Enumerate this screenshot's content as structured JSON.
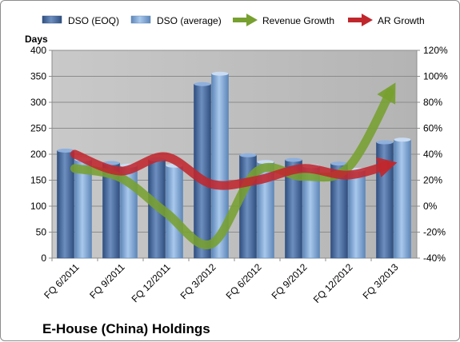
{
  "chart_data": {
    "type": "bar",
    "title": "E-House (China) Holdings",
    "ylabel": "Days",
    "ylim": [
      0,
      400
    ],
    "y2lim": [
      -40,
      120
    ],
    "yticks": [
      0,
      50,
      100,
      150,
      200,
      250,
      300,
      350,
      400
    ],
    "y2ticks": [
      "-40%",
      "-20%",
      "0%",
      "20%",
      "40%",
      "60%",
      "80%",
      "100%",
      "120%"
    ],
    "grid": true,
    "legend_position": "top",
    "categories": [
      "FQ 6/2011",
      "FQ 9/2011",
      "FQ 12/2011",
      "FQ 3/2012",
      "FQ 6/2012",
      "FQ 9/2012",
      "FQ 12/2012",
      "FQ 3/2013"
    ],
    "series": [
      {
        "name": "DSO (EOQ)",
        "type": "bar",
        "axis": "left",
        "color": "#4a6fa5",
        "values": [
          207,
          183,
          190,
          335,
          198,
          189,
          182,
          223
        ]
      },
      {
        "name": "DSO (average)",
        "type": "bar",
        "axis": "left",
        "color": "#8db4e2",
        "values": [
          190,
          178,
          178,
          355,
          185,
          177,
          170,
          228
        ]
      },
      {
        "name": "Revenue Growth",
        "type": "line",
        "axis": "right",
        "color": "#77a030",
        "values": [
          29,
          22,
          -5,
          -29,
          27,
          23,
          30,
          93
        ]
      },
      {
        "name": "AR Growth",
        "type": "line",
        "axis": "right",
        "color": "#c0272d",
        "values": [
          40,
          27,
          38,
          17,
          20,
          29,
          24,
          33
        ]
      }
    ]
  }
}
